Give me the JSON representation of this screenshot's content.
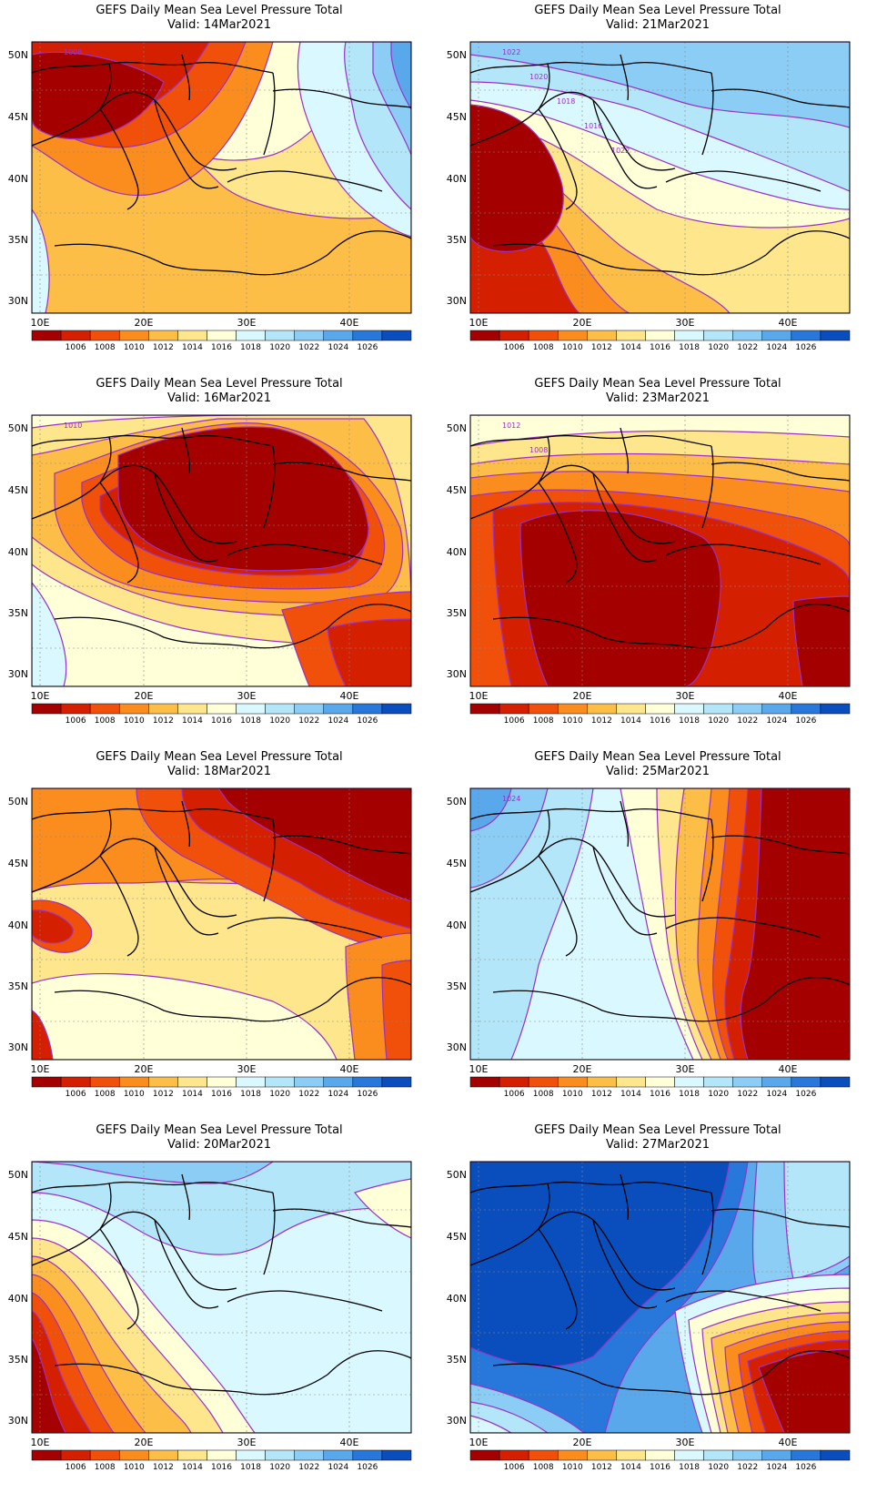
{
  "title": "GEFS Daily Mean Sea Level Pressure Total",
  "colorbar": {
    "labels": [
      "1006",
      "1008",
      "1010",
      "1012",
      "1014",
      "1016",
      "1018",
      "1020",
      "1022",
      "1024",
      "1026"
    ],
    "colors": [
      "#a50000",
      "#d42000",
      "#f0500a",
      "#fb8c1e",
      "#fdbe48",
      "#fee68c",
      "#ffffd8",
      "#daf8ff",
      "#b4e6fa",
      "#8ccdf5",
      "#5aa8ec",
      "#2878dc",
      "#0a4ebe"
    ]
  },
  "axes": {
    "lat_labels": [
      "50N",
      "45N",
      "40N",
      "35N",
      "30N"
    ],
    "lon_labels": [
      "10E",
      "20E",
      "30E",
      "40E"
    ]
  },
  "panels": [
    {
      "valid": "Valid: 14Mar2021",
      "contour_labels": [
        "1008"
      ]
    },
    {
      "valid": "Valid: 21Mar2021",
      "contour_labels": [
        "1022",
        "1020",
        "1018",
        "1016",
        "1022"
      ]
    },
    {
      "valid": "Valid: 16Mar2021",
      "contour_labels": [
        "1010"
      ]
    },
    {
      "valid": "Valid: 23Mar2021",
      "contour_labels": [
        "1012",
        "1008"
      ]
    },
    {
      "valid": "Valid: 18Mar2021",
      "contour_labels": []
    },
    {
      "valid": "Valid: 25Mar2021",
      "contour_labels": [
        "1024"
      ]
    },
    {
      "valid": "Valid: 20Mar2021",
      "contour_labels": []
    },
    {
      "valid": "Valid: 27Mar2021",
      "contour_labels": []
    }
  ]
}
